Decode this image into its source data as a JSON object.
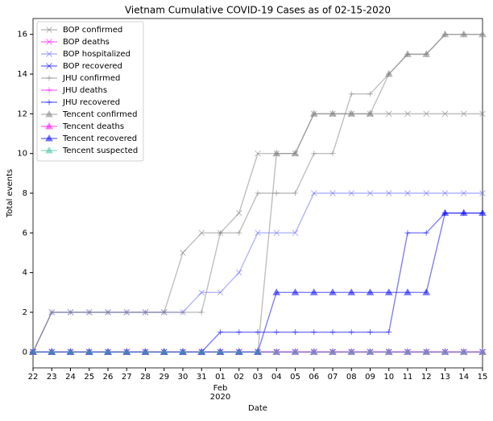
{
  "chart_data": {
    "type": "line",
    "title": "Vietnam Cumulative COVID-19 Cases as of 02-15-2020",
    "x_label": "Date",
    "y_label": "Total events",
    "categories": [
      "22",
      "23",
      "24",
      "25",
      "26",
      "27",
      "28",
      "29",
      "30",
      "31",
      "01",
      "02",
      "03",
      "04",
      "05",
      "06",
      "07",
      "08",
      "09",
      "10",
      "11",
      "12",
      "13",
      "14",
      "15"
    ],
    "x_sublabel": [
      "Feb",
      "2020"
    ],
    "ylim": [
      -0.8,
      16.8
    ],
    "yticks": [
      0,
      2,
      4,
      6,
      8,
      10,
      12,
      14,
      16
    ],
    "legend": "upper left",
    "series": [
      {
        "name": "BOP confirmed",
        "color": "#808080",
        "marker": "x",
        "values": [
          0,
          2,
          2,
          2,
          2,
          2,
          2,
          2,
          5,
          6,
          6,
          7,
          10,
          10,
          10,
          12,
          12,
          12,
          12,
          12,
          12,
          12,
          12,
          12,
          12
        ]
      },
      {
        "name": "BOP deaths",
        "color": "#ff00ff",
        "marker": "x",
        "values": [
          0,
          0,
          0,
          0,
          0,
          0,
          0,
          0,
          0,
          0,
          0,
          0,
          0,
          0,
          0,
          0,
          0,
          0,
          0,
          0,
          0,
          0,
          0,
          0,
          0
        ]
      },
      {
        "name": "BOP hospitalized",
        "color": "#6a6aff",
        "marker": "x",
        "values": [
          0,
          2,
          2,
          2,
          2,
          2,
          2,
          2,
          2,
          3,
          3,
          4,
          6,
          6,
          6,
          8,
          8,
          8,
          8,
          8,
          8,
          8,
          8,
          8,
          8
        ]
      },
      {
        "name": "BOP recovered",
        "color": "#0000ff",
        "marker": "x",
        "values": [
          0,
          0,
          0,
          0,
          0,
          0,
          0,
          0,
          0,
          0,
          0,
          0,
          0,
          0,
          0,
          0,
          0,
          0,
          0,
          0,
          0,
          0,
          0,
          0,
          0
        ]
      },
      {
        "name": "JHU confirmed",
        "color": "#808080",
        "marker": "+",
        "values": [
          0,
          2,
          2,
          2,
          2,
          2,
          2,
          2,
          2,
          2,
          6,
          6,
          8,
          8,
          8,
          10,
          10,
          13,
          13,
          14,
          15,
          15,
          16,
          16,
          16
        ]
      },
      {
        "name": "JHU deaths",
        "color": "#ff00ff",
        "marker": "+",
        "values": [
          0,
          0,
          0,
          0,
          0,
          0,
          0,
          0,
          0,
          0,
          0,
          0,
          0,
          0,
          0,
          0,
          0,
          0,
          0,
          0,
          0,
          0,
          0,
          0,
          0
        ]
      },
      {
        "name": "JHU recovered",
        "color": "#0000ff",
        "marker": "+",
        "values": [
          0,
          0,
          0,
          0,
          0,
          0,
          0,
          0,
          0,
          0,
          1,
          1,
          1,
          1,
          1,
          1,
          1,
          1,
          1,
          1,
          6,
          6,
          7,
          7,
          7
        ]
      },
      {
        "name": "Tencent confirmed",
        "color": "#808080",
        "marker": "^",
        "values": [
          0,
          0,
          0,
          0,
          0,
          0,
          0,
          0,
          0,
          0,
          0,
          0,
          0,
          10,
          10,
          12,
          12,
          12,
          12,
          14,
          15,
          15,
          16,
          16,
          16
        ]
      },
      {
        "name": "Tencent deaths",
        "color": "#ff00ff",
        "marker": "^",
        "values": [
          0,
          0,
          0,
          0,
          0,
          0,
          0,
          0,
          0,
          0,
          0,
          0,
          0,
          0,
          0,
          0,
          0,
          0,
          0,
          0,
          0,
          0,
          0,
          0,
          0
        ]
      },
      {
        "name": "Tencent recovered",
        "color": "#0000ff",
        "marker": "^",
        "values": [
          0,
          0,
          0,
          0,
          0,
          0,
          0,
          0,
          0,
          0,
          0,
          0,
          0,
          3,
          3,
          3,
          3,
          3,
          3,
          3,
          3,
          3,
          7,
          7,
          7
        ]
      },
      {
        "name": "Tencent suspected",
        "color": "#40c0a0",
        "marker": "^",
        "values": [
          0,
          0,
          0,
          0,
          0,
          0,
          0,
          0,
          0,
          0,
          0,
          0,
          0,
          0,
          0,
          0,
          0,
          0,
          0,
          0,
          0,
          0,
          0,
          0,
          0
        ]
      }
    ]
  }
}
